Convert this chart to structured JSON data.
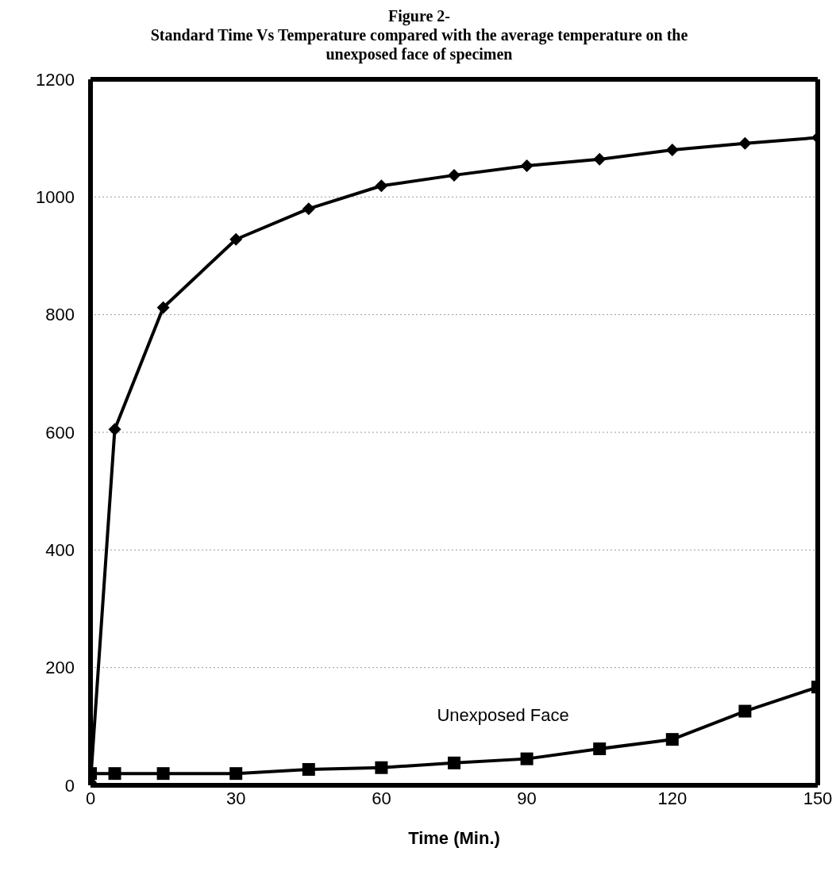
{
  "chart_data": {
    "type": "line",
    "title": "Figure 2-",
    "subtitle": "Standard Time Vs Temperature compared with the average temperature on the unexposed face of specimen",
    "xlabel": "Time (Min.)",
    "x": [
      0,
      5,
      15,
      30,
      45,
      60,
      75,
      90,
      105,
      120,
      135,
      150
    ],
    "series": [
      {
        "color": "#000000",
        "marker": "diamond",
        "values": [
          5,
          605,
          812,
          928,
          980,
          1019,
          1037,
          1053,
          1064,
          1080,
          1091,
          1101
        ]
      },
      {
        "name": "Unexposed Face",
        "color": "#000000",
        "marker": "square",
        "values": [
          20,
          20,
          20,
          20,
          27,
          30,
          38,
          45,
          62,
          78,
          126,
          167
        ]
      }
    ],
    "xlim": [
      0,
      150
    ],
    "xticks": [
      0,
      30,
      60,
      90,
      120,
      150
    ],
    "ylim": [
      0,
      1200
    ],
    "yticks": [
      0,
      200,
      400,
      600,
      800,
      1000,
      1200
    ],
    "grid": "y",
    "legend": false,
    "line_style": "solid"
  }
}
